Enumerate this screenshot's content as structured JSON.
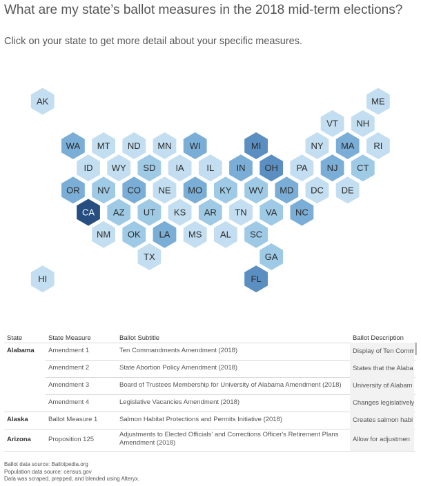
{
  "header": {
    "title": "What are my state’s ballot measures in the 2018 mid-term elections?",
    "subtitle": "Click on your state to get more detail about your specific measures."
  },
  "colors": {
    "level0": "#c3def0",
    "level1": "#9ecae6",
    "level2": "#7aaed6",
    "level3": "#5b8fc2",
    "level4": "#274e80",
    "label_light": "#2a2a2a",
    "label_dark": "#ffffff"
  },
  "states": [
    {
      "abbr": "AK",
      "row": 0,
      "col": 1,
      "level": 0
    },
    {
      "abbr": "ME",
      "row": 0,
      "col": 12,
      "level": 0
    },
    {
      "abbr": "VT",
      "row": 1,
      "col": 10,
      "level": 0
    },
    {
      "abbr": "NH",
      "row": 1,
      "col": 11,
      "level": 0
    },
    {
      "abbr": "WA",
      "row": 2,
      "col": 2,
      "level": 2
    },
    {
      "abbr": "MT",
      "row": 2,
      "col": 3,
      "level": 0
    },
    {
      "abbr": "ND",
      "row": 2,
      "col": 4,
      "level": 0
    },
    {
      "abbr": "MN",
      "row": 2,
      "col": 5,
      "level": 0
    },
    {
      "abbr": "WI",
      "row": 2,
      "col": 6,
      "level": 2
    },
    {
      "abbr": "MI",
      "row": 2,
      "col": 8,
      "level": 3
    },
    {
      "abbr": "NY",
      "row": 2,
      "col": 10,
      "level": 0
    },
    {
      "abbr": "MA",
      "row": 2,
      "col": 11,
      "level": 2
    },
    {
      "abbr": "RI",
      "row": 2,
      "col": 12,
      "level": 0
    },
    {
      "abbr": "ID",
      "row": 3,
      "col": 2,
      "level": 0
    },
    {
      "abbr": "WY",
      "row": 3,
      "col": 3,
      "level": 0
    },
    {
      "abbr": "SD",
      "row": 3,
      "col": 4,
      "level": 1
    },
    {
      "abbr": "IA",
      "row": 3,
      "col": 5,
      "level": 0
    },
    {
      "abbr": "IL",
      "row": 3,
      "col": 6,
      "level": 0
    },
    {
      "abbr": "IN",
      "row": 3,
      "col": 7,
      "level": 2
    },
    {
      "abbr": "OH",
      "row": 3,
      "col": 8,
      "level": 3
    },
    {
      "abbr": "PA",
      "row": 3,
      "col": 9,
      "level": 0
    },
    {
      "abbr": "NJ",
      "row": 3,
      "col": 10,
      "level": 2
    },
    {
      "abbr": "CT",
      "row": 3,
      "col": 11,
      "level": 1
    },
    {
      "abbr": "OR",
      "row": 4,
      "col": 2,
      "level": 2
    },
    {
      "abbr": "NV",
      "row": 4,
      "col": 3,
      "level": 1
    },
    {
      "abbr": "CO",
      "row": 4,
      "col": 4,
      "level": 2
    },
    {
      "abbr": "NE",
      "row": 4,
      "col": 5,
      "level": 0
    },
    {
      "abbr": "MO",
      "row": 4,
      "col": 6,
      "level": 2
    },
    {
      "abbr": "KY",
      "row": 4,
      "col": 7,
      "level": 1
    },
    {
      "abbr": "WV",
      "row": 4,
      "col": 8,
      "level": 1
    },
    {
      "abbr": "MD",
      "row": 4,
      "col": 9,
      "level": 2
    },
    {
      "abbr": "DC",
      "row": 4,
      "col": 10,
      "level": 0
    },
    {
      "abbr": "DE",
      "row": 4,
      "col": 11,
      "level": 0
    },
    {
      "abbr": "CA",
      "row": 5,
      "col": 2,
      "level": 4
    },
    {
      "abbr": "AZ",
      "row": 5,
      "col": 3,
      "level": 1
    },
    {
      "abbr": "UT",
      "row": 5,
      "col": 4,
      "level": 1
    },
    {
      "abbr": "KS",
      "row": 5,
      "col": 5,
      "level": 0
    },
    {
      "abbr": "AR",
      "row": 5,
      "col": 6,
      "level": 1
    },
    {
      "abbr": "TN",
      "row": 5,
      "col": 7,
      "level": 0
    },
    {
      "abbr": "VA",
      "row": 5,
      "col": 8,
      "level": 1
    },
    {
      "abbr": "NC",
      "row": 5,
      "col": 9,
      "level": 2
    },
    {
      "abbr": "NM",
      "row": 6,
      "col": 3,
      "level": 0
    },
    {
      "abbr": "OK",
      "row": 6,
      "col": 4,
      "level": 1
    },
    {
      "abbr": "LA",
      "row": 6,
      "col": 5,
      "level": 2
    },
    {
      "abbr": "MS",
      "row": 6,
      "col": 6,
      "level": 0
    },
    {
      "abbr": "AL",
      "row": 6,
      "col": 7,
      "level": 0
    },
    {
      "abbr": "SC",
      "row": 6,
      "col": 8,
      "level": 1
    },
    {
      "abbr": "TX",
      "row": 7,
      "col": 4,
      "level": 0
    },
    {
      "abbr": "GA",
      "row": 7,
      "col": 8,
      "level": 1
    },
    {
      "abbr": "HI",
      "row": 8,
      "col": 1,
      "level": 0
    },
    {
      "abbr": "FL",
      "row": 8,
      "col": 8,
      "level": 3
    }
  ],
  "table": {
    "headers": {
      "state": "State",
      "measure": "State Measure",
      "subtitle": "Ballot Subtitle",
      "description": "Ballot Description"
    },
    "rows": [
      {
        "state": "Alabama",
        "measure": "Amendment 1",
        "subtitle": "Ten Commandments Amendment (2018)",
        "description": "Display of Ten Comm"
      },
      {
        "state": "",
        "measure": "Amendment 2",
        "subtitle": "State Abortion Policy Amendment (2018)",
        "description": "States that the Alaba"
      },
      {
        "state": "",
        "measure": "Amendment 3",
        "subtitle": "Board of Trustees Membership for University of Alabama Amendment (2018)",
        "description": "University of Alabam"
      },
      {
        "state": "",
        "measure": "Amendment 4",
        "subtitle": "Legislative Vacancies Amendment (2018)",
        "description": "Changes legislatively"
      },
      {
        "state": "Alaska",
        "measure": "Ballot Measure 1",
        "subtitle": "Salmon Habitat Protections and Permits Initiative (2018)",
        "description": "Creates salmon habi"
      },
      {
        "state": "Arizona",
        "measure": "Proposition 125",
        "subtitle": "Adjustments to Elected Officials' and Corrections Officer's Retirement Plans Amendment (2018)",
        "description": "Allow for adjustmen"
      }
    ]
  },
  "footer": {
    "line1": "Ballot data source: Ballotpedia.org",
    "line2": "Population data source: census.gov",
    "line3": "Data was scraped, prepped, and blended using Alteryx."
  }
}
